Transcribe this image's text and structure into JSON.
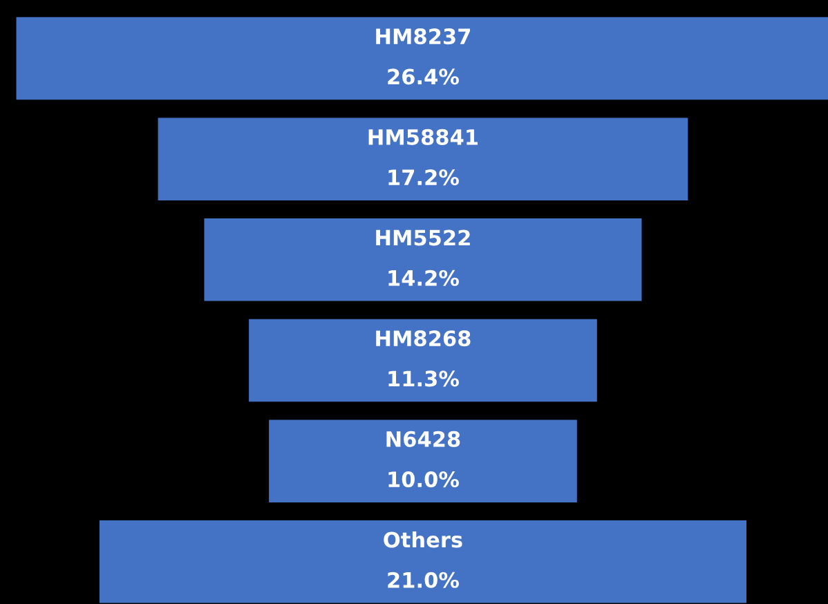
{
  "chart_data": {
    "type": "other",
    "categories": [
      "HM8237",
      "HM58841",
      "HM5522",
      "HM8268",
      "N6428",
      "Others"
    ],
    "values": [
      26.4,
      17.2,
      14.2,
      11.3,
      10.0,
      21.0
    ],
    "value_labels": [
      "26.4%",
      "17.2%",
      "14.2%",
      "11.3%",
      "10.0%",
      "21.0%"
    ],
    "color": "#4472c4"
  }
}
